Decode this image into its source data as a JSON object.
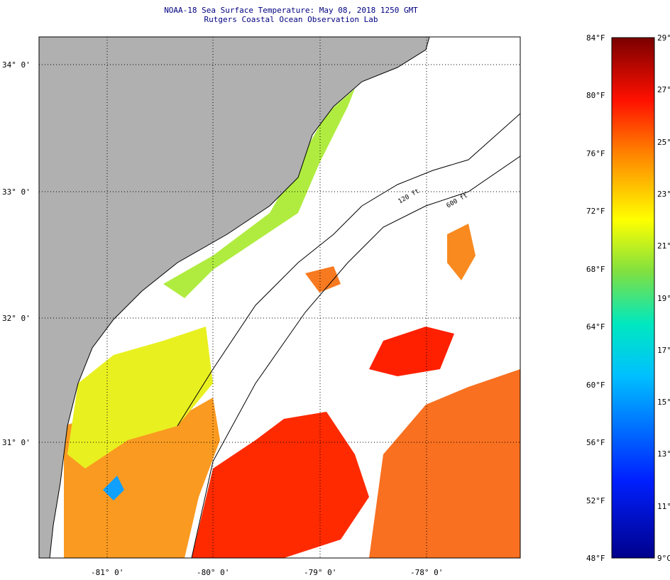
{
  "title": {
    "line1": "NOAA-18 Sea Surface Temperature:  May 08, 2018 1250 GMT",
    "line2": "Rutgers Coastal Ocean Observation Lab"
  },
  "map": {
    "lat_labels": [
      "34° 0'",
      "33° 0'",
      "32° 0'",
      "31° 0'"
    ],
    "lon_labels": [
      "-81° 0'",
      "-80° 0'",
      "-79° 0'",
      "-78° 0'"
    ],
    "contour_labels": [
      "120 ft",
      "600 ft"
    ],
    "colors": {
      "land": "#b0b0b0",
      "ocean_nodata": "#ffffff"
    }
  },
  "colorbar": {
    "fahrenheit": [
      "84°F",
      "80°F",
      "76°F",
      "72°F",
      "68°F",
      "64°F",
      "60°F",
      "56°F",
      "52°F",
      "48°F"
    ],
    "celsius": [
      "29°C",
      "27°C",
      "25°C",
      "23°C",
      "21°C",
      "19°C",
      "17°C",
      "15°C",
      "13°C",
      "11°C",
      "9°C"
    ],
    "range_f": [
      48,
      84
    ],
    "range_c": [
      9,
      29
    ]
  }
}
